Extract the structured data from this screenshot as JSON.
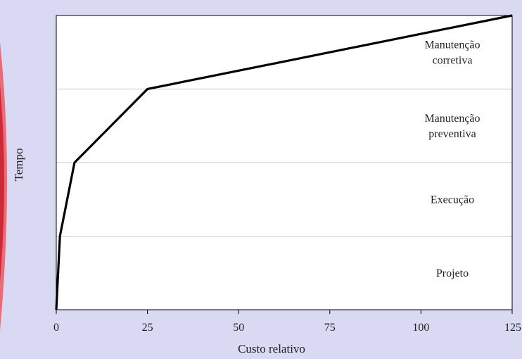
{
  "chart_data": {
    "type": "line",
    "xlabel": "Custo relativo",
    "ylabel": "Tempo",
    "xlim": [
      0,
      125
    ],
    "x_ticks": [
      0,
      25,
      50,
      75,
      100,
      125
    ],
    "grid": "horizontal",
    "phases": [
      [
        "Projeto"
      ],
      [
        "Execução"
      ],
      [
        "Manutenção",
        "preventiva"
      ],
      [
        "Manutenção",
        "corretiva"
      ]
    ],
    "series": [
      {
        "x": [
          0,
          1,
          5,
          25,
          125
        ],
        "y": [
          0,
          1,
          2,
          3,
          4
        ]
      }
    ]
  },
  "colors": {
    "background": "#d9d9f3",
    "plot_area": "#ffffff",
    "line": "#000000",
    "left_strip": "#cc2a36"
  }
}
